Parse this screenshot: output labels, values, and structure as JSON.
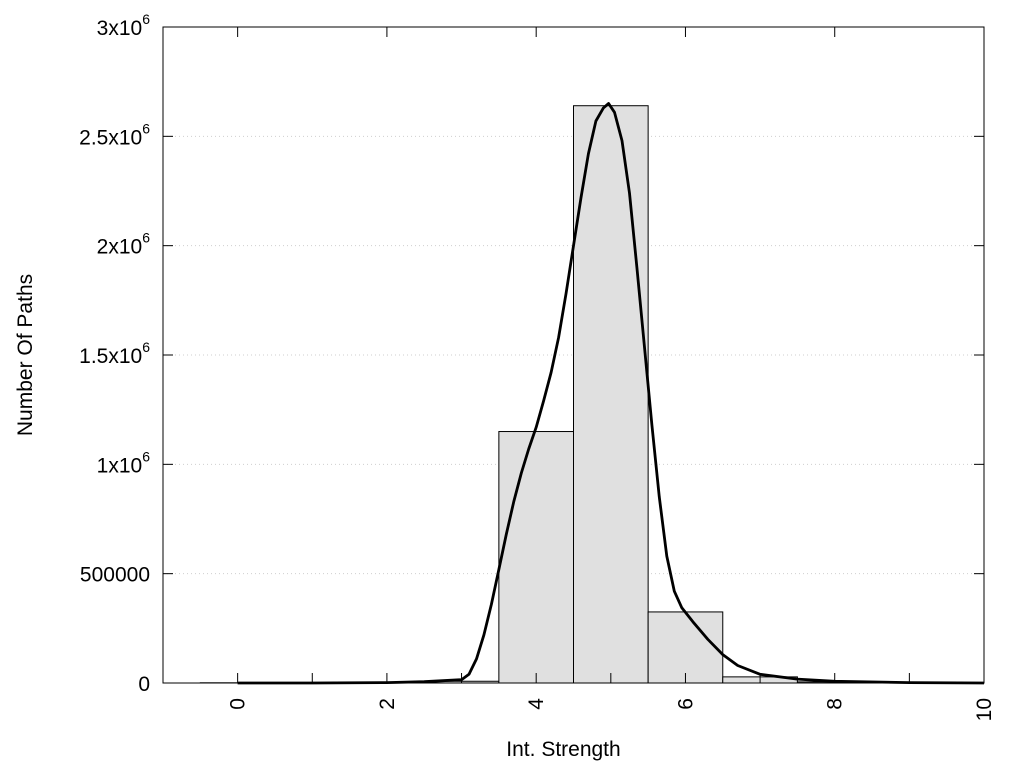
{
  "chart_data": {
    "type": "bar",
    "xlabel": "Int. Strength",
    "ylabel": "Number Of Paths",
    "xlim": [
      -1,
      10
    ],
    "ylim": [
      0,
      3000000
    ],
    "grid": true,
    "x_ticks": [
      {
        "value": 0,
        "label": "0"
      },
      {
        "value": 2,
        "label": "2"
      },
      {
        "value": 4,
        "label": "4"
      },
      {
        "value": 6,
        "label": "6"
      },
      {
        "value": 8,
        "label": "8"
      },
      {
        "value": 10,
        "label": "10"
      }
    ],
    "y_ticks": [
      {
        "value": 0,
        "base": "0",
        "sup": ""
      },
      {
        "value": 500000,
        "base": "500000",
        "sup": ""
      },
      {
        "value": 1000000,
        "base": "1x10",
        "sup": "6"
      },
      {
        "value": 1500000,
        "base": "1.5x10",
        "sup": "6"
      },
      {
        "value": 2000000,
        "base": "2x10",
        "sup": "6"
      },
      {
        "value": 2500000,
        "base": "2.5x10",
        "sup": "6"
      },
      {
        "value": 3000000,
        "base": "3x10",
        "sup": "6"
      }
    ],
    "bin_width": 1,
    "bar_fill": "#e0e0e0",
    "bar_stroke": "#000000",
    "bars": [
      {
        "x": 0,
        "value": 1000
      },
      {
        "x": 1,
        "value": 1000
      },
      {
        "x": 2,
        "value": 3000
      },
      {
        "x": 3,
        "value": 8000
      },
      {
        "x": 4,
        "value": 1150000
      },
      {
        "x": 5,
        "value": 2640000
      },
      {
        "x": 6,
        "value": 325000
      },
      {
        "x": 7,
        "value": 28000
      },
      {
        "x": 8,
        "value": 5000
      },
      {
        "x": 9,
        "value": 2000
      }
    ],
    "curve": {
      "color": "#000000",
      "points": [
        [
          0,
          0
        ],
        [
          1,
          0
        ],
        [
          2,
          2000
        ],
        [
          2.5,
          6000
        ],
        [
          3.0,
          15000
        ],
        [
          3.1,
          40000
        ],
        [
          3.2,
          110000
        ],
        [
          3.3,
          220000
        ],
        [
          3.4,
          360000
        ],
        [
          3.5,
          520000
        ],
        [
          3.6,
          680000
        ],
        [
          3.7,
          830000
        ],
        [
          3.8,
          960000
        ],
        [
          3.9,
          1070000
        ],
        [
          4.0,
          1170000
        ],
        [
          4.1,
          1290000
        ],
        [
          4.2,
          1420000
        ],
        [
          4.3,
          1580000
        ],
        [
          4.4,
          1780000
        ],
        [
          4.5,
          2000000
        ],
        [
          4.6,
          2220000
        ],
        [
          4.7,
          2420000
        ],
        [
          4.8,
          2570000
        ],
        [
          4.9,
          2630000
        ],
        [
          4.97,
          2650000
        ],
        [
          5.05,
          2610000
        ],
        [
          5.15,
          2480000
        ],
        [
          5.25,
          2240000
        ],
        [
          5.35,
          1900000
        ],
        [
          5.45,
          1540000
        ],
        [
          5.55,
          1180000
        ],
        [
          5.65,
          850000
        ],
        [
          5.75,
          580000
        ],
        [
          5.85,
          420000
        ],
        [
          5.95,
          345000
        ],
        [
          6.1,
          280000
        ],
        [
          6.3,
          200000
        ],
        [
          6.5,
          130000
        ],
        [
          6.7,
          80000
        ],
        [
          7.0,
          40000
        ],
        [
          7.5,
          18000
        ],
        [
          8.0,
          8000
        ],
        [
          9.0,
          2000
        ],
        [
          10,
          0
        ]
      ]
    }
  }
}
